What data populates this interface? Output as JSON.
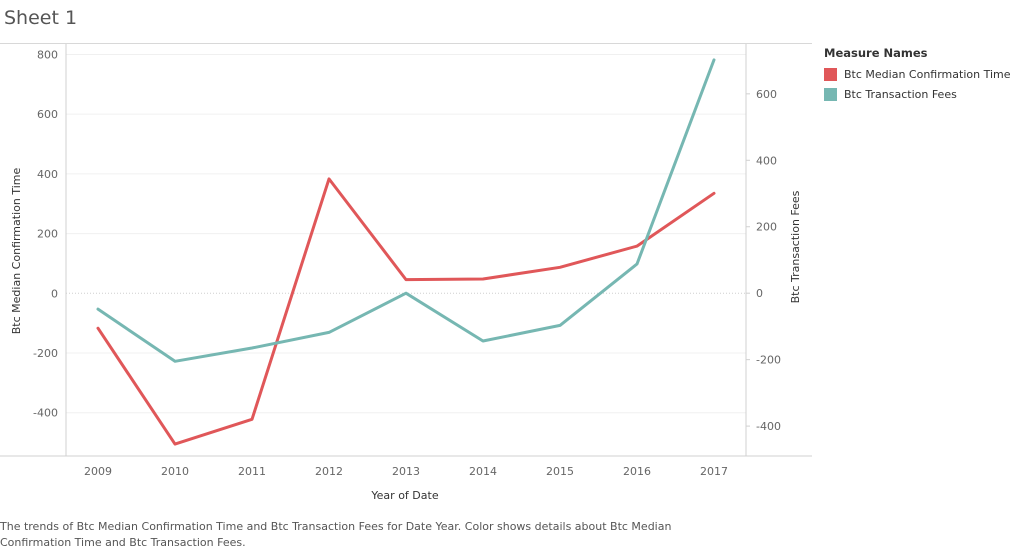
{
  "sheet": {
    "title": "Sheet 1"
  },
  "caption": "The trends of Btc Median Confirmation Time and Btc Transaction Fees for Date Year.  Color shows details about Btc Median Confirmation Time and Btc Transaction Fees.",
  "legend": {
    "title": "Measure Names",
    "items": [
      {
        "label": "Btc Median Confirmation Time",
        "color": "#e05759"
      },
      {
        "label": "Btc Transaction Fees",
        "color": "#76b7b2"
      }
    ]
  },
  "chart_data": {
    "type": "line",
    "x": [
      "2009",
      "2010",
      "2011",
      "2012",
      "2013",
      "2014",
      "2015",
      "2016",
      "2017"
    ],
    "xlabel": "Year of Date",
    "series": [
      {
        "name": "Btc Median Confirmation Time",
        "axis": "left",
        "color": "#e05759",
        "values": [
          -117,
          -505,
          -422,
          383,
          46,
          48,
          87,
          158,
          335
        ]
      },
      {
        "name": "Btc Transaction Fees",
        "axis": "right",
        "color": "#76b7b2",
        "values": [
          -48,
          -205,
          -165,
          -118,
          0,
          -144,
          -97,
          88,
          702
        ]
      }
    ],
    "y_left": {
      "label": "Btc Median Confirmation Time",
      "ticks": [
        800,
        600,
        400,
        200,
        0,
        -200,
        -400
      ],
      "range": [
        -545,
        835
      ]
    },
    "y_right": {
      "label": "Btc Transaction Fees",
      "ticks": [
        600,
        400,
        200,
        0,
        -200,
        -400
      ],
      "range": [
        -490,
        750
      ]
    },
    "grid": true,
    "legend_position": "right"
  }
}
